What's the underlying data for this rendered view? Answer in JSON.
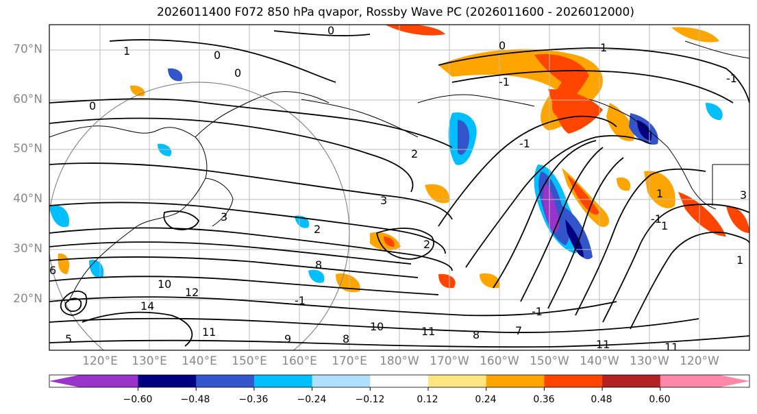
{
  "title": "2026011400 F072 850 hPa qvapor, Rossby Wave PC (2026011600 - 2026012000)",
  "lat_labels": [
    "70°N",
    "60°N",
    "50°N",
    "40°N",
    "30°N",
    "20°N"
  ],
  "lon_labels": [
    "120°E",
    "130°E",
    "140°E",
    "150°E",
    "160°E",
    "170°E",
    "180°W",
    "170°W",
    "160°W",
    "150°W",
    "140°W",
    "130°W",
    "120°W"
  ],
  "colorbar": {
    "colors": [
      "#9933cc",
      "#000080",
      "#3355cc",
      "#00bfff",
      "#b0e0ff",
      "#ffffff",
      "#ffe680",
      "#ffa500",
      "#ff4500",
      "#b22222",
      "#ff88aa"
    ],
    "ticks": [
      "−0.60",
      "−0.48",
      "−0.36",
      "−0.24",
      "−0.12",
      "0.12",
      "0.24",
      "0.36",
      "0.48",
      "0.60"
    ]
  },
  "contour_labels": [
    "0",
    "0",
    "0",
    "0",
    "0",
    "1",
    "1",
    "1",
    "1",
    "1",
    "2",
    "2",
    "2",
    "3",
    "3",
    "3",
    "8",
    "8",
    "8",
    "10",
    "10",
    "11",
    "11",
    "11",
    "11",
    "12",
    "14",
    "-1",
    "-1",
    "-1",
    "-1",
    "-1",
    "-1",
    "9",
    "5",
    "7",
    "6"
  ]
}
